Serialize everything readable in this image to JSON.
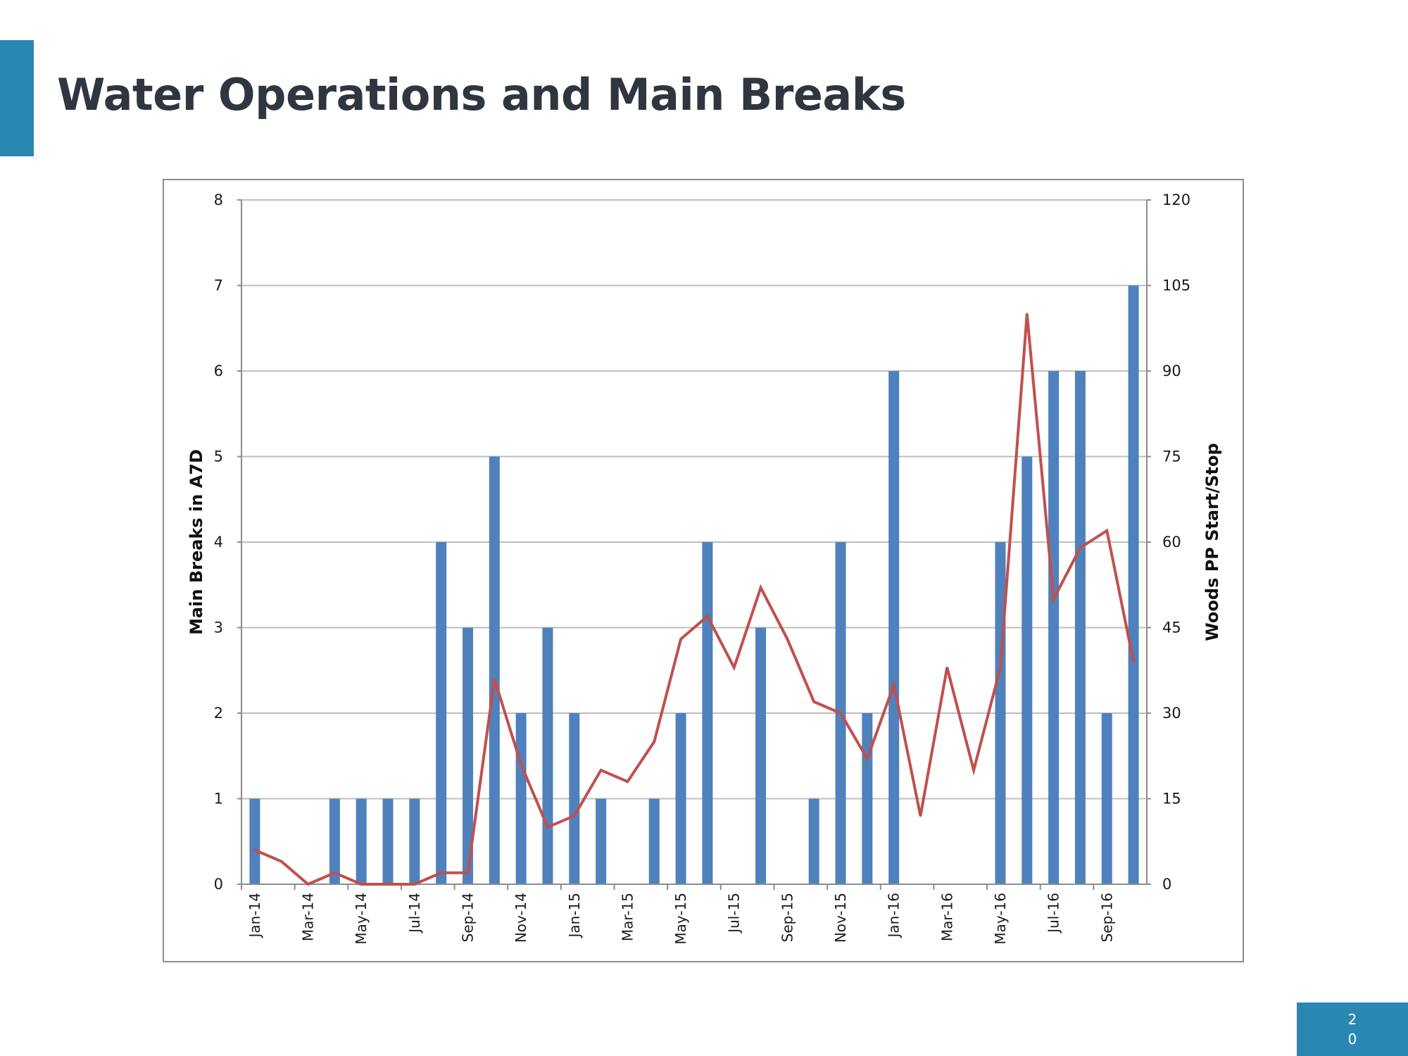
{
  "slide": {
    "title": "Water Operations and Main Breaks",
    "page_number": "20"
  },
  "colors": {
    "accent": "#2A86B3",
    "bars": "#4F81BD",
    "line": "#C0504D",
    "title_text": "#2F3640",
    "grid": "#BFBFBF"
  },
  "chart_data": {
    "type": "bar",
    "combo": "bar + line (secondary axis)",
    "title": "",
    "x": [
      "Jan-14",
      "Feb-14",
      "Mar-14",
      "Apr-14",
      "May-14",
      "Jun-14",
      "Jul-14",
      "Aug-14",
      "Sep-14",
      "Oct-14",
      "Nov-14",
      "Dec-14",
      "Jan-15",
      "Feb-15",
      "Mar-15",
      "Apr-15",
      "May-15",
      "Jun-15",
      "Jul-15",
      "Aug-15",
      "Sep-15",
      "Oct-15",
      "Nov-15",
      "Dec-15",
      "Jan-16",
      "Feb-16",
      "Mar-16",
      "Apr-16",
      "May-16",
      "Jun-16",
      "Jul-16",
      "Aug-16",
      "Sep-16",
      "Oct-16"
    ],
    "x_tick_labels": [
      "Jan-14",
      "Mar-14",
      "May-14",
      "Jul-14",
      "Sep-14",
      "Nov-14",
      "Jan-15",
      "Mar-15",
      "May-15",
      "Jul-15",
      "Sep-15",
      "Nov-15",
      "Jan-16",
      "Mar-16",
      "May-16",
      "Jul-16",
      "Sep-16"
    ],
    "ylabel": "Main Breaks in A7D",
    "y2label": "Woods PP Start/Stop",
    "ylim": [
      0,
      8
    ],
    "y2lim": [
      0,
      120
    ],
    "yticks": [
      0,
      1,
      2,
      3,
      4,
      5,
      6,
      7,
      8
    ],
    "y2ticks": [
      0,
      15,
      30,
      45,
      60,
      75,
      90,
      105,
      120
    ],
    "grid": true,
    "legend": "none",
    "series": [
      {
        "type": "bar",
        "axis": "left",
        "values": [
          1,
          0,
          0,
          1,
          1,
          1,
          1,
          4,
          3,
          5,
          2,
          3,
          2,
          1,
          0,
          1,
          2,
          4,
          0,
          3,
          0,
          1,
          4,
          2,
          6,
          0,
          0,
          0,
          4,
          5,
          6,
          6,
          2,
          7
        ]
      },
      {
        "type": "line",
        "axis": "right",
        "values": [
          6,
          4,
          0,
          2,
          0,
          0,
          0,
          2,
          2,
          36,
          21,
          10,
          12,
          20,
          18,
          25,
          43,
          47,
          38,
          52,
          43,
          32,
          30,
          22,
          35,
          12,
          38,
          20,
          38,
          100,
          50,
          59,
          62,
          39
        ]
      }
    ]
  }
}
